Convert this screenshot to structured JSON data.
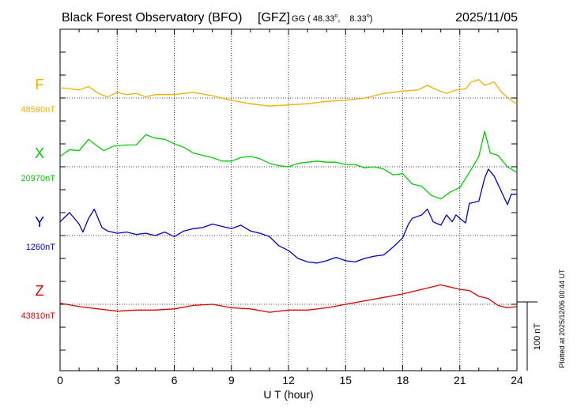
{
  "chart_data": {
    "type": "line",
    "title": "Black Forest Observatory (BFO)",
    "code": "[GFZ]",
    "coord_label": "GG ( 48.33",
    "coord_lat_deg": "o",
    "coord_sep": ",",
    "coord_lon": "8.33",
    "coord_lon_deg": "o",
    "coord_close": ")",
    "date": "2025/11/05",
    "xlabel": "U T (hour)",
    "xlim": [
      0,
      24
    ],
    "x_ticks": [
      0,
      3,
      6,
      9,
      12,
      15,
      18,
      21,
      24
    ],
    "x_tick_labels": [
      "0",
      "3",
      "6",
      "9",
      "12",
      "15",
      "18",
      "21",
      "24"
    ],
    "units_per_tick": 20,
    "scale_bar_label": "100 nT",
    "plotted_note": "Plotted at 2025/12/06 00:44 UT",
    "series": [
      {
        "name": "F",
        "baseline_label": "48590nT",
        "baseline": 48590,
        "baseline_tick": 2,
        "color": "#f0b000",
        "points": [
          [
            0,
            48599
          ],
          [
            0.5,
            48598
          ],
          [
            1,
            48597
          ],
          [
            1.5,
            48600
          ],
          [
            2,
            48594
          ],
          [
            2.5,
            48591
          ],
          [
            3,
            48595
          ],
          [
            3.5,
            48593
          ],
          [
            4,
            48594
          ],
          [
            4.5,
            48591
          ],
          [
            5,
            48593
          ],
          [
            6,
            48593
          ],
          [
            7,
            48595
          ],
          [
            8,
            48592
          ],
          [
            9,
            48588
          ],
          [
            10,
            48585
          ],
          [
            11,
            48583
          ],
          [
            12,
            48584
          ],
          [
            13,
            48585
          ],
          [
            14,
            48587
          ],
          [
            15,
            48588
          ],
          [
            16,
            48590
          ],
          [
            17,
            48594
          ],
          [
            18,
            48596
          ],
          [
            18.8,
            48597
          ],
          [
            19.3,
            48601
          ],
          [
            19.8,
            48597
          ],
          [
            20.3,
            48594
          ],
          [
            20.8,
            48597
          ],
          [
            21.3,
            48598
          ],
          [
            21.6,
            48604
          ],
          [
            22,
            48606
          ],
          [
            22.3,
            48601
          ],
          [
            22.8,
            48604
          ],
          [
            23.2,
            48595
          ],
          [
            23.6,
            48589
          ],
          [
            24,
            48585
          ]
        ]
      },
      {
        "name": "X",
        "baseline_label": "20970nT",
        "baseline": 20970,
        "baseline_tick": 5,
        "color": "#00cc00",
        "points": [
          [
            0,
            20979
          ],
          [
            0.5,
            20985
          ],
          [
            1,
            20984
          ],
          [
            1.5,
            20994
          ],
          [
            1.8,
            20990
          ],
          [
            2.3,
            20984
          ],
          [
            2.8,
            20988
          ],
          [
            3.5,
            20989
          ],
          [
            4,
            20989
          ],
          [
            4.5,
            20998
          ],
          [
            5,
            20995
          ],
          [
            5.5,
            20994
          ],
          [
            6,
            20990
          ],
          [
            6.5,
            20987
          ],
          [
            7,
            20982
          ],
          [
            7.5,
            20980
          ],
          [
            8,
            20978
          ],
          [
            8.5,
            20975
          ],
          [
            9,
            20975
          ],
          [
            9.5,
            20978
          ],
          [
            10,
            20979
          ],
          [
            10.5,
            20977
          ],
          [
            11,
            20973
          ],
          [
            11.5,
            20971
          ],
          [
            12,
            20970
          ],
          [
            12.5,
            20973
          ],
          [
            13,
            20974
          ],
          [
            13.5,
            20975
          ],
          [
            14,
            20974
          ],
          [
            14.5,
            20974
          ],
          [
            15,
            20972
          ],
          [
            15.5,
            20972
          ],
          [
            16,
            20969
          ],
          [
            16.5,
            20970
          ],
          [
            17,
            20968
          ],
          [
            17.5,
            20963
          ],
          [
            18,
            20964
          ],
          [
            18.5,
            20955
          ],
          [
            19,
            20953
          ],
          [
            19.5,
            20945
          ],
          [
            20,
            20942
          ],
          [
            20.5,
            20948
          ],
          [
            21,
            20952
          ],
          [
            21.5,
            20965
          ],
          [
            22,
            20979
          ],
          [
            22.3,
            21001
          ],
          [
            22.6,
            20982
          ],
          [
            23,
            20980
          ],
          [
            23.5,
            20970
          ],
          [
            24,
            20965
          ]
        ]
      },
      {
        "name": "Y",
        "baseline_label": "1260nT",
        "baseline": 1260,
        "baseline_tick": 8,
        "color": "#0000cc",
        "points": [
          [
            0,
            1272
          ],
          [
            0.5,
            1280
          ],
          [
            1,
            1270
          ],
          [
            1.2,
            1263
          ],
          [
            1.5,
            1275
          ],
          [
            1.8,
            1283
          ],
          [
            2.2,
            1267
          ],
          [
            2.5,
            1264
          ],
          [
            3,
            1262
          ],
          [
            3.5,
            1263
          ],
          [
            4,
            1261
          ],
          [
            4.5,
            1262
          ],
          [
            5,
            1260
          ],
          [
            5.5,
            1263
          ],
          [
            6,
            1259
          ],
          [
            6.5,
            1264
          ],
          [
            7,
            1266
          ],
          [
            7.5,
            1267
          ],
          [
            8,
            1270
          ],
          [
            8.5,
            1268
          ],
          [
            9,
            1266
          ],
          [
            9.5,
            1269
          ],
          [
            10,
            1264
          ],
          [
            10.5,
            1262
          ],
          [
            11,
            1259
          ],
          [
            11.5,
            1251
          ],
          [
            12,
            1247
          ],
          [
            12.5,
            1240
          ],
          [
            13,
            1237
          ],
          [
            13.5,
            1236
          ],
          [
            14,
            1238
          ],
          [
            14.5,
            1241
          ],
          [
            15,
            1238
          ],
          [
            15.5,
            1237
          ],
          [
            16,
            1240
          ],
          [
            16.5,
            1242
          ],
          [
            17,
            1243
          ],
          [
            17.5,
            1250
          ],
          [
            18,
            1258
          ],
          [
            18.3,
            1270
          ],
          [
            18.5,
            1275
          ],
          [
            19,
            1278
          ],
          [
            19.3,
            1283
          ],
          [
            19.6,
            1272
          ],
          [
            20,
            1269
          ],
          [
            20.3,
            1278
          ],
          [
            20.6,
            1272
          ],
          [
            20.8,
            1278
          ],
          [
            21,
            1275
          ],
          [
            21.3,
            1271
          ],
          [
            21.5,
            1288
          ],
          [
            22,
            1290
          ],
          [
            22.3,
            1310
          ],
          [
            22.5,
            1318
          ],
          [
            22.8,
            1312
          ],
          [
            23,
            1305
          ],
          [
            23.5,
            1287
          ],
          [
            23.7,
            1296
          ],
          [
            24,
            1296
          ]
        ]
      },
      {
        "name": "Z",
        "baseline_label": "43810nT",
        "baseline": 43810,
        "baseline_tick": 11,
        "color": "#dd0000",
        "points": [
          [
            0,
            43811
          ],
          [
            1,
            43808
          ],
          [
            2,
            43806
          ],
          [
            3,
            43804
          ],
          [
            4,
            43805
          ],
          [
            5,
            43805
          ],
          [
            6,
            43806
          ],
          [
            7,
            43809
          ],
          [
            8,
            43810
          ],
          [
            9,
            43807
          ],
          [
            10,
            43806
          ],
          [
            11,
            43803
          ],
          [
            12,
            43805
          ],
          [
            13,
            43805
          ],
          [
            14,
            43807
          ],
          [
            15,
            43810
          ],
          [
            16,
            43813
          ],
          [
            17,
            43816
          ],
          [
            18,
            43819
          ],
          [
            19,
            43823
          ],
          [
            19.5,
            43825
          ],
          [
            20,
            43827
          ],
          [
            20.5,
            43825
          ],
          [
            21,
            43823
          ],
          [
            21.5,
            43822
          ],
          [
            22,
            43817
          ],
          [
            22.5,
            43815
          ],
          [
            23,
            43809
          ],
          [
            23.5,
            43807
          ],
          [
            24,
            43808
          ]
        ]
      }
    ]
  }
}
